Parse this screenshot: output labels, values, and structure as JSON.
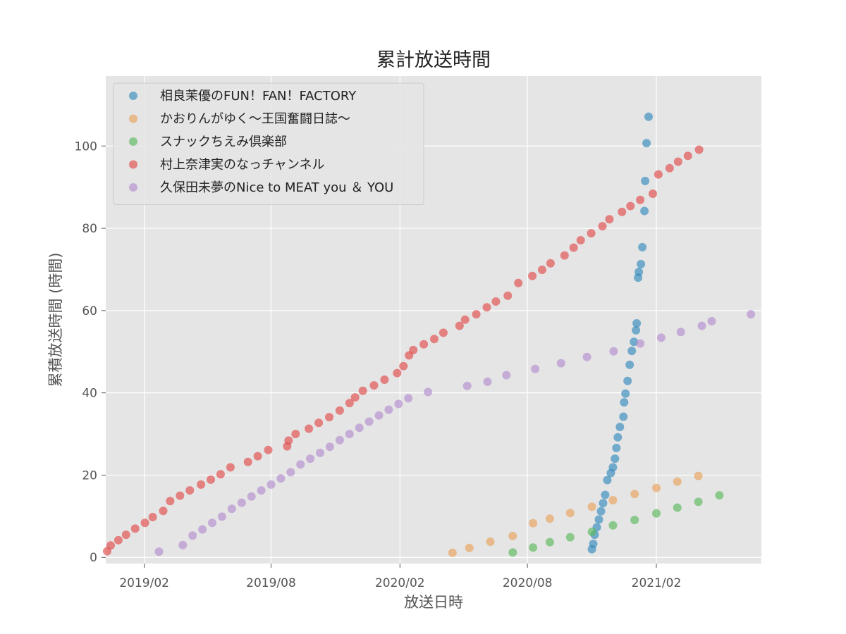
{
  "chart_data": {
    "type": "scatter",
    "title": "累計放送時間",
    "xlabel": "放送日時",
    "ylabel": "累積放送時間 (時間)",
    "xlim": [
      "2018-12-08",
      "2021-07-01"
    ],
    "ylim": [
      -1.5,
      117
    ],
    "x_ticks": [
      {
        "date": "2019-02-01",
        "label": "2019/02"
      },
      {
        "date": "2019-08-01",
        "label": "2019/08"
      },
      {
        "date": "2020-02-01",
        "label": "2020/02"
      },
      {
        "date": "2020-08-01",
        "label": "2020/08"
      },
      {
        "date": "2021-02-01",
        "label": "2021/02"
      }
    ],
    "y_ticks": [
      0,
      20,
      40,
      60,
      80,
      100
    ],
    "grid": true,
    "legend": {
      "position": "top-left"
    },
    "background": "#e5e5e5",
    "series": [
      {
        "name": "相良茉優のFUN！FAN！FACTORY",
        "color": "#348ABD",
        "points": [
          [
            "2020-11-01",
            2
          ],
          [
            "2020-11-03",
            3.3
          ],
          [
            "2020-11-05",
            5.5
          ],
          [
            "2020-11-08",
            7.3
          ],
          [
            "2020-11-11",
            9.2
          ],
          [
            "2020-11-14",
            11.2
          ],
          [
            "2020-11-17",
            13.2
          ],
          [
            "2020-11-20",
            15.2
          ],
          [
            "2020-11-23",
            18.8
          ],
          [
            "2020-11-28",
            20.5
          ],
          [
            "2020-12-01",
            21.9
          ],
          [
            "2020-12-04",
            24
          ],
          [
            "2020-12-06",
            26.6
          ],
          [
            "2020-12-08",
            29.2
          ],
          [
            "2020-12-11",
            31.7
          ],
          [
            "2020-12-16",
            34.2
          ],
          [
            "2020-12-17",
            37.7
          ],
          [
            "2020-12-19",
            39.8
          ],
          [
            "2020-12-22",
            42.9
          ],
          [
            "2020-12-25",
            46.8
          ],
          [
            "2020-12-28",
            50.2
          ],
          [
            "2020-12-31",
            52.4
          ],
          [
            "2021-01-03",
            55.2
          ],
          [
            "2021-01-04",
            56.9
          ],
          [
            "2021-01-06",
            68
          ],
          [
            "2021-01-07",
            69.4
          ],
          [
            "2021-01-10",
            71.3
          ],
          [
            "2021-01-12",
            75.4
          ],
          [
            "2021-01-15",
            84.2
          ],
          [
            "2021-01-16",
            91.5
          ],
          [
            "2021-01-18",
            100.7
          ],
          [
            "2021-01-21",
            107.1
          ]
        ]
      },
      {
        "name": "かおりんがゆく〜王国奮闘日誌〜",
        "color": "#E8A15B",
        "points": [
          [
            "2020-04-16",
            1.1
          ],
          [
            "2020-05-10",
            2.3
          ],
          [
            "2020-06-09",
            3.8
          ],
          [
            "2020-07-11",
            5.2
          ],
          [
            "2020-08-09",
            8.3
          ],
          [
            "2020-09-02",
            9.4
          ],
          [
            "2020-10-01",
            10.8
          ],
          [
            "2020-11-01",
            12.3
          ],
          [
            "2020-12-01",
            13.9
          ],
          [
            "2021-01-01",
            15.4
          ],
          [
            "2021-02-01",
            16.9
          ],
          [
            "2021-03-03",
            18.4
          ],
          [
            "2021-04-02",
            19.8
          ]
        ]
      },
      {
        "name": "スナックちえみ倶楽部",
        "color": "#5BB85B",
        "points": [
          [
            "2020-07-11",
            1.2
          ],
          [
            "2020-08-09",
            2.4
          ],
          [
            "2020-09-02",
            3.7
          ],
          [
            "2020-10-01",
            4.9
          ],
          [
            "2020-11-01",
            6.2
          ],
          [
            "2020-12-01",
            7.8
          ],
          [
            "2021-01-01",
            9.1
          ],
          [
            "2021-02-01",
            10.7
          ],
          [
            "2021-03-03",
            12.1
          ],
          [
            "2021-04-02",
            13.5
          ],
          [
            "2021-05-02",
            15.1
          ]
        ]
      },
      {
        "name": "村上奈津実のなっチャンネル",
        "color": "#E24A4A",
        "points": [
          [
            "2018-12-10",
            1.5
          ],
          [
            "2018-12-15",
            2.9
          ],
          [
            "2018-12-26",
            4.2
          ],
          [
            "2019-01-06",
            5.5
          ],
          [
            "2019-01-19",
            7.0
          ],
          [
            "2019-02-02",
            8.4
          ],
          [
            "2019-02-13",
            9.8
          ],
          [
            "2019-02-28",
            11.3
          ],
          [
            "2019-03-10",
            13.7
          ],
          [
            "2019-03-24",
            15.0
          ],
          [
            "2019-04-07",
            16.3
          ],
          [
            "2019-04-23",
            17.7
          ],
          [
            "2019-05-07",
            18.9
          ],
          [
            "2019-05-21",
            20.2
          ],
          [
            "2019-06-04",
            21.9
          ],
          [
            "2019-06-29",
            23.2
          ],
          [
            "2019-07-13",
            24.6
          ],
          [
            "2019-07-28",
            26.1
          ],
          [
            "2019-08-24",
            27.0
          ],
          [
            "2019-08-26",
            28.4
          ],
          [
            "2019-09-05",
            30.0
          ],
          [
            "2019-09-24",
            31.3
          ],
          [
            "2019-10-08",
            32.7
          ],
          [
            "2019-10-23",
            34.1
          ],
          [
            "2019-11-07",
            35.7
          ],
          [
            "2019-11-21",
            37.5
          ],
          [
            "2019-11-29",
            38.9
          ],
          [
            "2019-12-10",
            40.5
          ],
          [
            "2019-12-26",
            41.8
          ],
          [
            "2020-01-10",
            43.2
          ],
          [
            "2020-01-28",
            44.8
          ],
          [
            "2020-02-06",
            46.5
          ],
          [
            "2020-02-14",
            49.1
          ],
          [
            "2020-02-20",
            50.4
          ],
          [
            "2020-03-06",
            51.8
          ],
          [
            "2020-03-21",
            53.1
          ],
          [
            "2020-04-03",
            54.6
          ],
          [
            "2020-04-26",
            56.3
          ],
          [
            "2020-05-04",
            57.8
          ],
          [
            "2020-05-20",
            59.1
          ],
          [
            "2020-06-04",
            60.8
          ],
          [
            "2020-06-17",
            62.2
          ],
          [
            "2020-07-04",
            63.6
          ],
          [
            "2020-07-19",
            66.7
          ],
          [
            "2020-08-08",
            68.4
          ],
          [
            "2020-08-22",
            69.9
          ],
          [
            "2020-09-03",
            71.5
          ],
          [
            "2020-09-23",
            73.4
          ],
          [
            "2020-10-06",
            75.3
          ],
          [
            "2020-10-16",
            77.1
          ],
          [
            "2020-10-31",
            78.8
          ],
          [
            "2020-11-16",
            80.5
          ],
          [
            "2020-11-26",
            82.2
          ],
          [
            "2020-12-14",
            84.0
          ],
          [
            "2020-12-26",
            85.4
          ],
          [
            "2021-01-09",
            86.9
          ],
          [
            "2021-01-27",
            88.4
          ],
          [
            "2021-02-04",
            93.1
          ],
          [
            "2021-02-20",
            94.6
          ],
          [
            "2021-03-04",
            96.2
          ],
          [
            "2021-03-18",
            97.6
          ],
          [
            "2021-04-03",
            99.1
          ]
        ]
      },
      {
        "name": "久保田未夢のNice to MEAT you ＆ YOU",
        "color": "#B38DD0",
        "points": [
          [
            "2019-02-22",
            1.4
          ],
          [
            "2019-03-28",
            3.0
          ],
          [
            "2019-04-11",
            5.3
          ],
          [
            "2019-04-25",
            6.8
          ],
          [
            "2019-05-09",
            8.4
          ],
          [
            "2019-05-23",
            9.9
          ],
          [
            "2019-06-06",
            11.8
          ],
          [
            "2019-06-20",
            13.3
          ],
          [
            "2019-07-04",
            14.8
          ],
          [
            "2019-07-18",
            16.3
          ],
          [
            "2019-08-01",
            17.7
          ],
          [
            "2019-08-15",
            19.2
          ],
          [
            "2019-08-29",
            20.7
          ],
          [
            "2019-09-12",
            22.6
          ],
          [
            "2019-09-26",
            24.0
          ],
          [
            "2019-10-10",
            25.4
          ],
          [
            "2019-10-24",
            26.9
          ],
          [
            "2019-11-07",
            28.5
          ],
          [
            "2019-11-21",
            30.0
          ],
          [
            "2019-12-05",
            31.5
          ],
          [
            "2019-12-19",
            33.0
          ],
          [
            "2020-01-02",
            34.5
          ],
          [
            "2020-01-16",
            35.9
          ],
          [
            "2020-01-30",
            37.3
          ],
          [
            "2020-02-13",
            38.7
          ],
          [
            "2020-03-12",
            40.2
          ],
          [
            "2020-05-07",
            41.7
          ],
          [
            "2020-06-05",
            42.7
          ],
          [
            "2020-07-02",
            44.3
          ],
          [
            "2020-08-12",
            45.8
          ],
          [
            "2020-09-18",
            47.2
          ],
          [
            "2020-10-25",
            48.7
          ],
          [
            "2020-12-02",
            50.1
          ],
          [
            "2021-01-09",
            52.0
          ],
          [
            "2021-02-08",
            53.4
          ],
          [
            "2021-03-08",
            54.8
          ],
          [
            "2021-04-07",
            56.3
          ],
          [
            "2021-04-21",
            57.4
          ],
          [
            "2021-06-16",
            59.1
          ]
        ]
      }
    ]
  }
}
